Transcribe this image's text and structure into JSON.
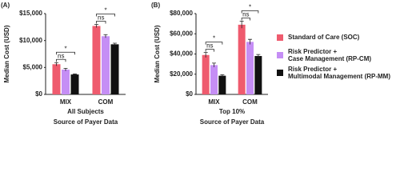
{
  "chart_data": [
    {
      "type": "bar",
      "panel": "(A)",
      "ylabel": "Median Cost (USD)",
      "subtitle": "All Subjects",
      "xlabel": "Source of Payer Data",
      "categories": [
        "MIX",
        "COM"
      ],
      "series": [
        {
          "color": "#ef5b6e",
          "values": [
            5600,
            12700
          ],
          "errors": [
            300,
            300
          ]
        },
        {
          "color": "#c58ef5",
          "values": [
            4600,
            10800
          ],
          "errors": [
            250,
            300
          ]
        },
        {
          "color": "#111111",
          "values": [
            3700,
            9300
          ],
          "errors": [
            100,
            200
          ]
        }
      ],
      "ylim": [
        0,
        15000
      ],
      "yticks": [
        {
          "value": 0,
          "label": "$0"
        },
        {
          "value": 5000,
          "label": "$5,000"
        },
        {
          "value": 10000,
          "label": "$10,000"
        },
        {
          "value": 15000,
          "label": "$15,000"
        }
      ],
      "brackets": [
        {
          "text": "ns",
          "category": 0,
          "series": [
            0,
            1
          ]
        },
        {
          "text": "*",
          "category": 0,
          "series": [
            0,
            2
          ]
        },
        {
          "text": "ns",
          "category": 1,
          "series": [
            0,
            1
          ]
        },
        {
          "text": "*",
          "category": 1,
          "series": [
            0,
            2
          ]
        }
      ]
    },
    {
      "type": "bar",
      "panel": "(B)",
      "ylabel": "Median Cost (USD)",
      "subtitle": "Top 10%",
      "xlabel": "Source of Payer Data",
      "categories": [
        "MIX",
        "COM"
      ],
      "series": [
        {
          "name": "Standard of Care (SOC)",
          "color": "#ef5b6e",
          "values": [
            39000,
            69000
          ],
          "errors": [
            2500,
            3500
          ]
        },
        {
          "name": "Risk Predictor + Case Management (RP-CM)",
          "color": "#c58ef5",
          "values": [
            29000,
            52000
          ],
          "errors": [
            2000,
            2500
          ]
        },
        {
          "name": "Risk Predictor + Multimodal Management (RP-MM)",
          "color": "#111111",
          "values": [
            18500,
            38000
          ],
          "errors": [
            1000,
            1500
          ]
        }
      ],
      "ylim": [
        0,
        80000
      ],
      "yticks": [
        {
          "value": 0,
          "label": "$0"
        },
        {
          "value": 20000,
          "label": "$20,000"
        },
        {
          "value": 40000,
          "label": "$40,000"
        },
        {
          "value": 60000,
          "label": "$60,000"
        },
        {
          "value": 80000,
          "label": "$80,000"
        }
      ],
      "brackets": [
        {
          "text": "ns",
          "category": 0,
          "series": [
            0,
            1
          ]
        },
        {
          "text": "*",
          "category": 0,
          "series": [
            0,
            2
          ]
        },
        {
          "text": "ns",
          "category": 1,
          "series": [
            0,
            1
          ]
        },
        {
          "text": "*",
          "category": 1,
          "series": [
            0,
            2
          ]
        }
      ],
      "legend": "right"
    }
  ]
}
